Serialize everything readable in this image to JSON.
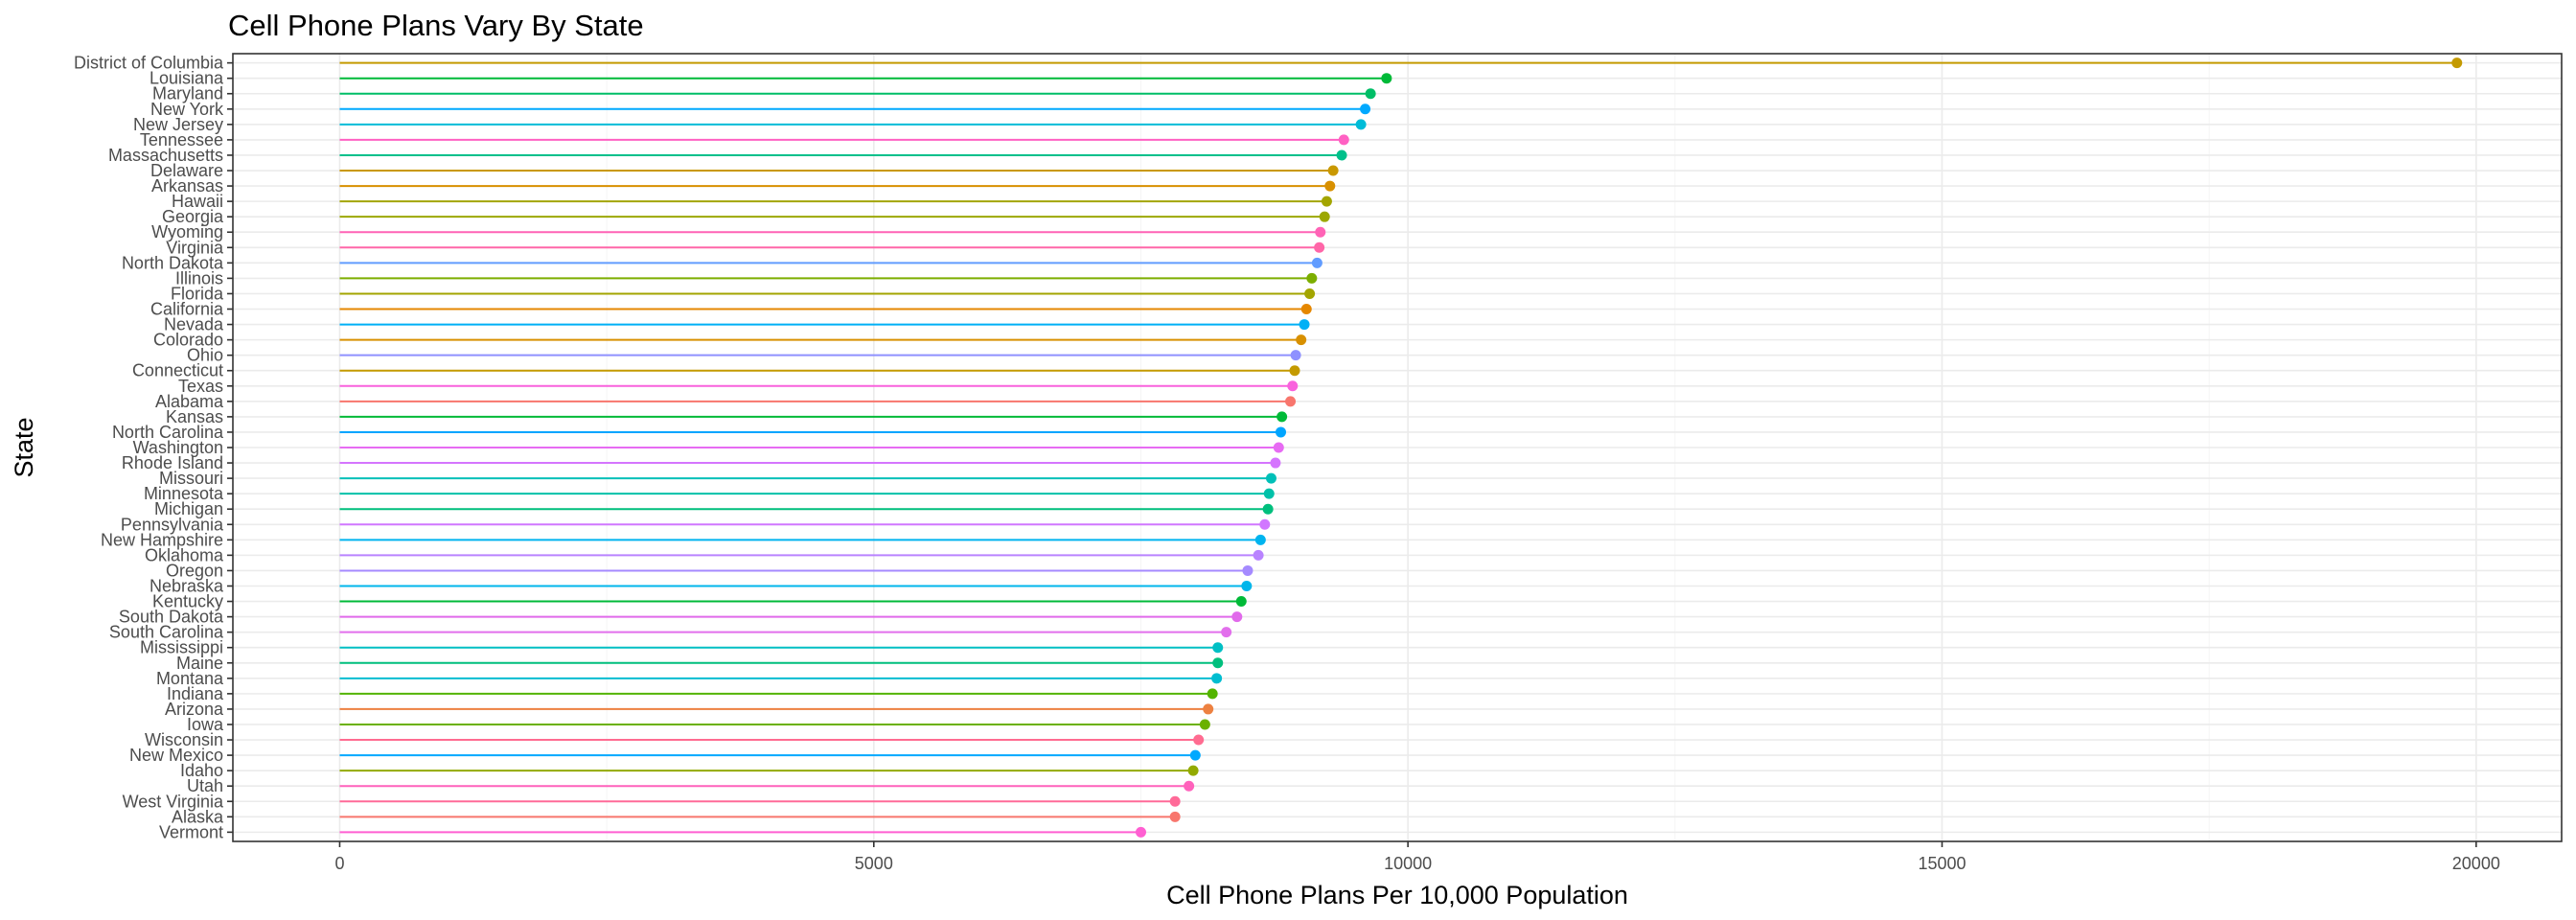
{
  "chart_data": {
    "type": "lollipop",
    "title": "Cell Phone Plans Vary By State",
    "xlabel": "Cell Phone Plans Per 10,000 Population",
    "ylabel": "State",
    "xlim": [
      -1000,
      20800
    ],
    "x_ticks": [
      0,
      5000,
      10000,
      15000,
      20000
    ],
    "x_tick_labels": [
      "0",
      "5000",
      "10000",
      "15000",
      "20000"
    ],
    "grid": true,
    "legend": "none",
    "points": [
      {
        "state": "District of Columbia",
        "value": 19820,
        "color": "#C49A00"
      },
      {
        "state": "Louisiana",
        "value": 9800,
        "color": "#00BA38"
      },
      {
        "state": "Maryland",
        "value": 9650,
        "color": "#00BE67"
      },
      {
        "state": "New York",
        "value": 9600,
        "color": "#00A9FF"
      },
      {
        "state": "New Jersey",
        "value": 9560,
        "color": "#00BCD8"
      },
      {
        "state": "Tennessee",
        "value": 9400,
        "color": "#FF61C3"
      },
      {
        "state": "Massachusetts",
        "value": 9380,
        "color": "#00C08B"
      },
      {
        "state": "Delaware",
        "value": 9300,
        "color": "#C99800"
      },
      {
        "state": "Arkansas",
        "value": 9270,
        "color": "#D89000"
      },
      {
        "state": "Hawaii",
        "value": 9240,
        "color": "#A3A500"
      },
      {
        "state": "Georgia",
        "value": 9220,
        "color": "#9CA700"
      },
      {
        "state": "Wyoming",
        "value": 9180,
        "color": "#FF63B6"
      },
      {
        "state": "Virginia",
        "value": 9170,
        "color": "#FF66A8"
      },
      {
        "state": "North Dakota",
        "value": 9150,
        "color": "#619CFF"
      },
      {
        "state": "Illinois",
        "value": 9100,
        "color": "#7CAE00"
      },
      {
        "state": "Florida",
        "value": 9080,
        "color": "#A3A500"
      },
      {
        "state": "California",
        "value": 9050,
        "color": "#E58700"
      },
      {
        "state": "Nevada",
        "value": 9030,
        "color": "#00B0F6"
      },
      {
        "state": "Colorado",
        "value": 9000,
        "color": "#D89000"
      },
      {
        "state": "Ohio",
        "value": 8950,
        "color": "#8F91FF"
      },
      {
        "state": "Connecticut",
        "value": 8940,
        "color": "#C49A00"
      },
      {
        "state": "Texas",
        "value": 8920,
        "color": "#F962DD"
      },
      {
        "state": "Alabama",
        "value": 8900,
        "color": "#F8766D"
      },
      {
        "state": "Kansas",
        "value": 8820,
        "color": "#00BA38"
      },
      {
        "state": "North Carolina",
        "value": 8810,
        "color": "#00A5FF"
      },
      {
        "state": "Washington",
        "value": 8790,
        "color": "#E76BF3"
      },
      {
        "state": "Rhode Island",
        "value": 8760,
        "color": "#D575FE"
      },
      {
        "state": "Missouri",
        "value": 8720,
        "color": "#00C0B8"
      },
      {
        "state": "Minnesota",
        "value": 8700,
        "color": "#00C1A9"
      },
      {
        "state": "Michigan",
        "value": 8690,
        "color": "#00BF7D"
      },
      {
        "state": "Pennsylvania",
        "value": 8660,
        "color": "#D177FF"
      },
      {
        "state": "New Hampshire",
        "value": 8620,
        "color": "#00B4EF"
      },
      {
        "state": "Oklahoma",
        "value": 8600,
        "color": "#B983FF"
      },
      {
        "state": "Oregon",
        "value": 8500,
        "color": "#A58AFF"
      },
      {
        "state": "Nebraska",
        "value": 8490,
        "color": "#00B6EB"
      },
      {
        "state": "Kentucky",
        "value": 8440,
        "color": "#00BA38"
      },
      {
        "state": "South Dakota",
        "value": 8400,
        "color": "#E16AEB"
      },
      {
        "state": "South Carolina",
        "value": 8300,
        "color": "#E26FEC"
      },
      {
        "state": "Mississippi",
        "value": 8220,
        "color": "#00BFC4"
      },
      {
        "state": "Maine",
        "value": 8220,
        "color": "#00BF7D"
      },
      {
        "state": "Montana",
        "value": 8210,
        "color": "#00BDD0"
      },
      {
        "state": "Indiana",
        "value": 8170,
        "color": "#53B400"
      },
      {
        "state": "Arizona",
        "value": 8130,
        "color": "#ED8141"
      },
      {
        "state": "Iowa",
        "value": 8100,
        "color": "#6BB100"
      },
      {
        "state": "Wisconsin",
        "value": 8040,
        "color": "#FF6C91"
      },
      {
        "state": "New Mexico",
        "value": 8010,
        "color": "#00A9FF"
      },
      {
        "state": "Idaho",
        "value": 7990,
        "color": "#93AA00"
      },
      {
        "state": "Utah",
        "value": 7950,
        "color": "#FF62BC"
      },
      {
        "state": "West Virginia",
        "value": 7820,
        "color": "#FF6A98"
      },
      {
        "state": "Alaska",
        "value": 7820,
        "color": "#F8766D"
      },
      {
        "state": "Vermont",
        "value": 7500,
        "color": "#FF5FD2"
      }
    ]
  }
}
